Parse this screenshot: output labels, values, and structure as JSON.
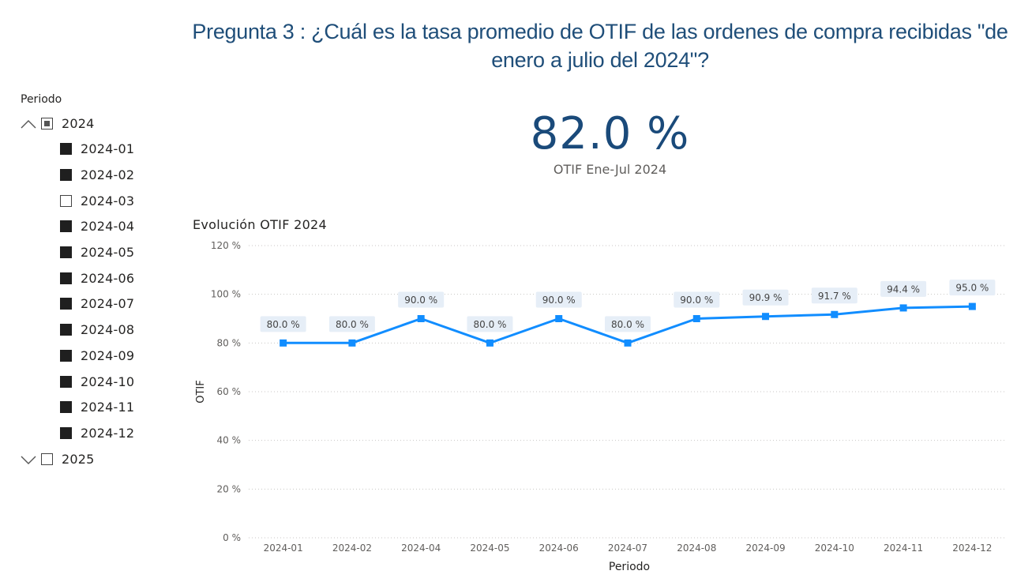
{
  "title": "Pregunta 3 : ¿Cuál es la tasa promedio de OTIF de las ordenes de compra recibidas \"de enero a julio del 2024\"?",
  "slicer": {
    "header": "Periodo",
    "groups": [
      {
        "label": "2024",
        "expanded": true,
        "state": "partial",
        "items": [
          {
            "label": "2024-01",
            "checked": true
          },
          {
            "label": "2024-02",
            "checked": true
          },
          {
            "label": "2024-03",
            "checked": false
          },
          {
            "label": "2024-04",
            "checked": true
          },
          {
            "label": "2024-05",
            "checked": true
          },
          {
            "label": "2024-06",
            "checked": true
          },
          {
            "label": "2024-07",
            "checked": true
          },
          {
            "label": "2024-08",
            "checked": true
          },
          {
            "label": "2024-09",
            "checked": true
          },
          {
            "label": "2024-10",
            "checked": true
          },
          {
            "label": "2024-11",
            "checked": true
          },
          {
            "label": "2024-12",
            "checked": true
          }
        ]
      },
      {
        "label": "2025",
        "expanded": false,
        "state": "unchecked",
        "items": []
      }
    ]
  },
  "kpi": {
    "value": "82.0 %",
    "label": "OTIF Ene-Jul 2024"
  },
  "chart_data": {
    "type": "line",
    "title": "Evolución OTIF 2024",
    "xlabel": "Periodo",
    "ylabel": "OTIF",
    "categories": [
      "2024-01",
      "2024-02",
      "2024-04",
      "2024-05",
      "2024-06",
      "2024-07",
      "2024-08",
      "2024-09",
      "2024-10",
      "2024-11",
      "2024-12"
    ],
    "values": [
      80.0,
      80.0,
      90.0,
      80.0,
      90.0,
      80.0,
      90.0,
      90.9,
      91.7,
      94.4,
      95.0
    ],
    "data_labels": [
      "80.0 %",
      "80.0 %",
      "90.0 %",
      "80.0 %",
      "90.0 %",
      "80.0 %",
      "90.0 %",
      "90.9 %",
      "91.7 %",
      "94.4 %",
      "95.0 %"
    ],
    "ylim": [
      0,
      120
    ],
    "yticks": [
      0,
      20,
      40,
      60,
      80,
      100,
      120
    ],
    "ytick_labels": [
      "0 %",
      "20 %",
      "40 %",
      "60 %",
      "80 %",
      "100 %",
      "120 %"
    ],
    "grid": true,
    "line_color": "#118DFF",
    "label_bg_color": "#E6EEF7"
  }
}
